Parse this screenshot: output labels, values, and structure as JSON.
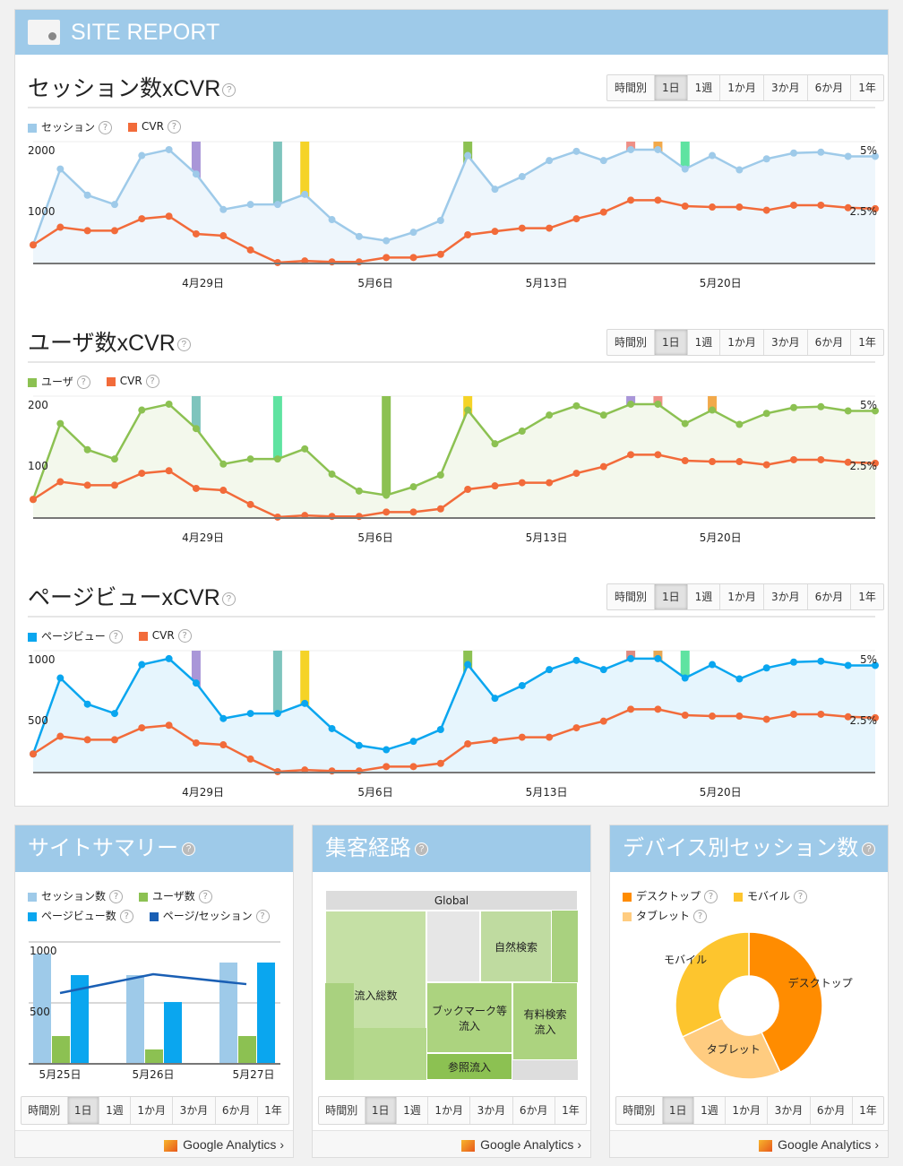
{
  "header": {
    "title": "SITE REPORT"
  },
  "ranges": [
    "時間別",
    "1日",
    "1週",
    "1か月",
    "3か月",
    "6か月",
    "1年"
  ],
  "selected_range": "1日",
  "help": "?",
  "chart_data": [
    {
      "type": "line",
      "title": "セッション数xCVR",
      "series": [
        {
          "name": "セッション",
          "color": "#9ecae9",
          "fill": "#eef6fc",
          "axis": "left",
          "values": [
            324,
            1647,
            1191,
            1029,
            1882,
            1985,
            1559,
            941,
            1029,
            1029,
            1206,
            765,
            471,
            397,
            544,
            750,
            1882,
            1294,
            1515,
            1794,
            1956,
            1794,
            1985,
            1985,
            1647,
            1882,
            1632,
            1824,
            1926,
            1941,
            1868,
            1868
          ]
        },
        {
          "name": "CVR",
          "color": "#f26b3a",
          "axis": "right",
          "values": [
            0.81,
            1.58,
            1.43,
            1.43,
            1.95,
            2.06,
            1.29,
            1.21,
            0.59,
            0.04,
            0.11,
            0.07,
            0.07,
            0.26,
            0.26,
            0.4,
            1.25,
            1.4,
            1.54,
            1.54,
            1.95,
            2.24,
            2.76,
            2.76,
            2.5,
            2.46,
            2.46,
            2.32,
            2.54,
            2.54,
            2.43,
            2.39
          ]
        }
      ],
      "ylim": [
        0,
        2000
      ],
      "yticks": [
        "2000",
        "1000"
      ],
      "y2lim": [
        0,
        5
      ],
      "y2ticks": [
        "5%",
        "2.5%"
      ],
      "xticks": [
        {
          "label": "4月29日",
          "at": 6.25
        },
        {
          "label": "5月6日",
          "at": 12.6
        },
        {
          "label": "5月13日",
          "at": 18.9
        },
        {
          "label": "5月20日",
          "at": 25.3
        }
      ],
      "markers": [
        {
          "at": 6,
          "color": "#a996d8"
        },
        {
          "at": 9,
          "color": "#7ec4bd"
        },
        {
          "at": 10,
          "color": "#f5d327"
        },
        {
          "at": 16,
          "color": "#8cc152"
        },
        {
          "at": 22,
          "color": "#ef8f86"
        },
        {
          "at": 23,
          "color": "#f2a94a"
        },
        {
          "at": 24,
          "color": "#5fe3a1"
        }
      ]
    },
    {
      "type": "line",
      "title": "ユーザ数xCVR",
      "series": [
        {
          "name": "ユーザ",
          "color": "#8cc152",
          "fill": "#f3f8ec",
          "axis": "left",
          "values": [
            32.4,
            164.7,
            119.1,
            102.9,
            188.2,
            198.5,
            155.9,
            94.1,
            102.9,
            102.9,
            120.6,
            76.5,
            47.1,
            39.7,
            54.4,
            75,
            188.2,
            129.4,
            151.5,
            179.4,
            195.6,
            179.4,
            198.5,
            198.5,
            164.7,
            188.2,
            163.2,
            182.4,
            192.6,
            194.1,
            186.8,
            186.8
          ]
        },
        {
          "name": "CVR",
          "color": "#f26b3a",
          "axis": "right",
          "values": [
            0.81,
            1.58,
            1.43,
            1.43,
            1.95,
            2.06,
            1.29,
            1.21,
            0.59,
            0.04,
            0.11,
            0.07,
            0.07,
            0.26,
            0.26,
            0.4,
            1.25,
            1.4,
            1.54,
            1.54,
            1.95,
            2.24,
            2.76,
            2.76,
            2.5,
            2.46,
            2.46,
            2.32,
            2.54,
            2.54,
            2.43,
            2.39
          ]
        }
      ],
      "ylim": [
        0,
        200
      ],
      "yticks": [
        "200",
        "100"
      ],
      "y2lim": [
        0,
        5
      ],
      "y2ticks": [
        "5%",
        "2.5%"
      ],
      "xticks": [
        {
          "label": "4月29日",
          "at": 6.25
        },
        {
          "label": "5月6日",
          "at": 12.6
        },
        {
          "label": "5月13日",
          "at": 18.9
        },
        {
          "label": "5月20日",
          "at": 25.3
        }
      ],
      "markers": [
        {
          "at": 6,
          "color": "#7ec4bd"
        },
        {
          "at": 9,
          "color": "#5fe3a1"
        },
        {
          "at": 13,
          "color": "#8cc152"
        },
        {
          "at": 16,
          "color": "#f5d327"
        },
        {
          "at": 22,
          "color": "#a996d8"
        },
        {
          "at": 23,
          "color": "#ef8f86"
        },
        {
          "at": 25,
          "color": "#f2a94a"
        }
      ]
    },
    {
      "type": "line",
      "title": "ページビューxCVR",
      "series": [
        {
          "name": "ページビュー",
          "color": "#0aa6ef",
          "fill": "#e6f5fd",
          "axis": "left",
          "values": [
            162,
            824,
            596,
            515,
            941,
            993,
            780,
            471,
            515,
            515,
            603,
            383,
            236,
            199,
            272,
            375,
            941,
            647,
            758,
            897,
            978,
            897,
            993,
            993,
            824,
            941,
            816,
            912,
            963,
            971,
            934,
            934
          ]
        },
        {
          "name": "CVR",
          "color": "#f26b3a",
          "axis": "right",
          "values": [
            0.81,
            1.58,
            1.43,
            1.43,
            1.95,
            2.06,
            1.29,
            1.21,
            0.59,
            0.04,
            0.11,
            0.07,
            0.07,
            0.26,
            0.26,
            0.4,
            1.25,
            1.4,
            1.54,
            1.54,
            1.95,
            2.24,
            2.76,
            2.76,
            2.5,
            2.46,
            2.46,
            2.32,
            2.54,
            2.54,
            2.43,
            2.39
          ]
        }
      ],
      "ylim": [
        0,
        1000
      ],
      "yticks": [
        "1000",
        "500"
      ],
      "y2lim": [
        0,
        5
      ],
      "y2ticks": [
        "5%",
        "2.5%"
      ],
      "xticks": [
        {
          "label": "4月29日",
          "at": 6.25
        },
        {
          "label": "5月6日",
          "at": 12.6
        },
        {
          "label": "5月13日",
          "at": 18.9
        },
        {
          "label": "5月20日",
          "at": 25.3
        }
      ],
      "markers": [
        {
          "at": 6,
          "color": "#a996d8"
        },
        {
          "at": 9,
          "color": "#7ec4bd"
        },
        {
          "at": 10,
          "color": "#f5d327"
        },
        {
          "at": 16,
          "color": "#8cc152"
        },
        {
          "at": 22,
          "color": "#e08a80"
        },
        {
          "at": 23,
          "color": "#e8a752"
        },
        {
          "at": 24,
          "color": "#5fe3a1"
        }
      ]
    },
    {
      "type": "bar",
      "title": "サイトサマリー",
      "categories": [
        "5月25日",
        "5月26日",
        "5月27日"
      ],
      "ylim": [
        0,
        1000
      ],
      "yticks": [
        "1000",
        "500"
      ],
      "series": [
        {
          "name": "セッション数",
          "color": "#9ecae9",
          "values": [
            904,
            728,
            831
          ]
        },
        {
          "name": "ユーザ数",
          "color": "#8cc152",
          "values": [
            228,
            118,
            228
          ]
        },
        {
          "name": "ページビュー数",
          "color": "#0aa6ef",
          "values": [
            728,
            507,
            831
          ]
        },
        {
          "name": "ページ/セッション",
          "color": "#1a5fb4",
          "type": "line",
          "values": [
            581,
            735,
            654
          ]
        }
      ]
    },
    {
      "type": "pie",
      "title": "デバイス別セッション数",
      "labels": [
        "デスクトップ",
        "タブレット",
        "モバイル"
      ],
      "values": [
        43,
        25,
        32
      ],
      "colors": [
        "#ff8c00",
        "#ffcc80",
        "#fdc52e"
      ],
      "legend": [
        "デスクトップ",
        "モバイル",
        "タブレット"
      ],
      "legend_colors": [
        "#ff8c00",
        "#fdc52e",
        "#ffcc80"
      ]
    }
  ],
  "treemap": {
    "title": "集客経路",
    "root": "Global",
    "nodes": [
      "流入総数",
      "自然検索",
      "ブックマーク等\n流入",
      "有料検索\n流入",
      "参照流入"
    ]
  },
  "footer": {
    "link": "Google Analytics",
    "chevron": "›"
  }
}
